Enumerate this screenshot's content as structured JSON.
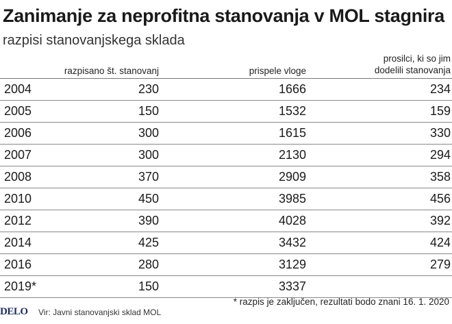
{
  "chart_data": {
    "type": "table",
    "title": "Zanimanje za neprofitna stanovanja v MOL stagnira",
    "subtitle": "razpisi stanovanjskega sklada",
    "columns": [
      "",
      "razpisano št. stanovanj",
      "prispele vloge",
      "prosilci, ki so jim dodelili stanovanja"
    ],
    "column_header_lines": {
      "c3_line1": "prosilci, ki so jim",
      "c3_line2": "dodelili stanovanja"
    },
    "rows": [
      {
        "year": "2004",
        "razpisano": "230",
        "vloge": "1666",
        "dodeljeno": "234"
      },
      {
        "year": "2005",
        "razpisano": "150",
        "vloge": "1532",
        "dodeljeno": "159"
      },
      {
        "year": "2006",
        "razpisano": "300",
        "vloge": "1615",
        "dodeljeno": "330"
      },
      {
        "year": "2007",
        "razpisano": "300",
        "vloge": "2130",
        "dodeljeno": "294"
      },
      {
        "year": "2008",
        "razpisano": "370",
        "vloge": "2909",
        "dodeljeno": "358"
      },
      {
        "year": "2010",
        "razpisano": "450",
        "vloge": "3985",
        "dodeljeno": "456"
      },
      {
        "year": "2012",
        "razpisano": "390",
        "vloge": "4028",
        "dodeljeno": "392"
      },
      {
        "year": "2014",
        "razpisano": "425",
        "vloge": "3432",
        "dodeljeno": "424"
      },
      {
        "year": "2016",
        "razpisano": "280",
        "vloge": "3129",
        "dodeljeno": "279"
      },
      {
        "year": "2019*",
        "razpisano": "150",
        "vloge": "3337",
        "dodeljeno": ""
      }
    ]
  },
  "footer": {
    "logo": "DELO",
    "source": "Vir: Javni stanovanjski sklad MOL",
    "note": "* razpis je zaključen, rezultati bodo znani 16. 1. 2020"
  },
  "colors": {
    "text": "#1a1a1a",
    "rule": "#888888",
    "logo": "#1d2c5a"
  }
}
